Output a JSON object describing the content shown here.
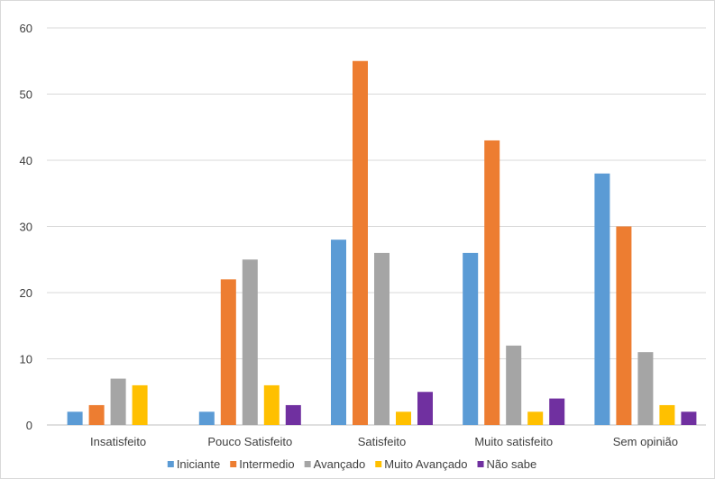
{
  "chart_data": {
    "type": "bar",
    "categories": [
      "Insatisfeito",
      "Pouco Satisfeito",
      "Satisfeito",
      "Muito satisfeito",
      "Sem opinião"
    ],
    "series": [
      {
        "name": "Iniciante",
        "color": "#5b9bd5",
        "values": [
          2,
          2,
          28,
          26,
          38
        ]
      },
      {
        "name": "Intermedio",
        "color": "#ed7d31",
        "values": [
          3,
          22,
          55,
          43,
          30
        ]
      },
      {
        "name": "Avançado",
        "color": "#a5a5a5",
        "values": [
          7,
          25,
          26,
          12,
          11
        ]
      },
      {
        "name": "Muito Avançado",
        "color": "#ffc000",
        "values": [
          6,
          6,
          2,
          2,
          3
        ]
      },
      {
        "name": "Não sabe",
        "color": "#7030a0",
        "values": [
          0,
          3,
          5,
          4,
          2
        ]
      }
    ],
    "yticks": [
      0,
      10,
      20,
      30,
      40,
      50,
      60
    ],
    "ylim": [
      0,
      60
    ],
    "grid": true,
    "legend_position": "bottom",
    "title": "",
    "xlabel": "",
    "ylabel": ""
  }
}
